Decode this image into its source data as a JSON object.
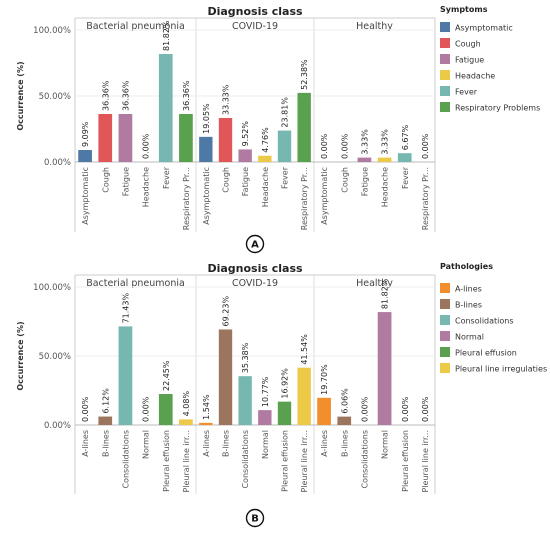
{
  "chart_data": [
    {
      "type": "bar",
      "title": "Diagnosis class",
      "ylabel": "Occurrence (%)",
      "ylim": [
        0,
        100
      ],
      "yticks": [
        "0.00%",
        "50.00%",
        "100.00%"
      ],
      "legend_title": "Symptoms",
      "legend_position": "right",
      "panel_label": "A",
      "categories": [
        "Asymptomatic",
        "Cough",
        "Fatigue",
        "Headache",
        "Fever",
        "Respiratory Problems"
      ],
      "tick_labels": [
        "Asymptomatic",
        "Cough",
        "Fatigue",
        "Headache",
        "Fever",
        "Respiratory Pr..."
      ],
      "colors": [
        "#4e79a7",
        "#e15759",
        "#b07aa1",
        "#edc948",
        "#76b7b2",
        "#59a14f"
      ],
      "groups": [
        {
          "name": "Bacterial pneumonia",
          "values": [
            9.09,
            36.36,
            36.36,
            0.0,
            81.82,
            36.36
          ],
          "labels": [
            "9.09%",
            "36.36%",
            "36.36%",
            "0.00%",
            "81.82%",
            "36.36%"
          ]
        },
        {
          "name": "COVID-19",
          "values": [
            19.05,
            33.33,
            9.52,
            4.76,
            23.81,
            52.38
          ],
          "labels": [
            "19.05%",
            "33.33%",
            "9.52%",
            "4.76%",
            "23.81%",
            "52.38%"
          ]
        },
        {
          "name": "Healthy",
          "values": [
            0.0,
            0.0,
            3.33,
            3.33,
            6.67,
            0.0
          ],
          "labels": [
            "0.00%",
            "0.00%",
            "3.33%",
            "3.33%",
            "6.67%",
            "0.00%"
          ]
        }
      ]
    },
    {
      "type": "bar",
      "title": "Diagnosis class",
      "ylabel": "Occurrence (%)",
      "ylim": [
        0,
        100
      ],
      "yticks": [
        "0.00%",
        "50.00%",
        "100.00%"
      ],
      "legend_title": "Pathologies",
      "legend_position": "right",
      "panel_label": "B",
      "categories": [
        "A-lines",
        "B-lines",
        "Consolidations",
        "Normal",
        "Pleural effusion",
        "Pleural line irregulaties"
      ],
      "tick_labels": [
        "A-lines",
        "B-lines",
        "Consolidations",
        "Normal",
        "Pleural effusion",
        "Pleural line irr..."
      ],
      "colors": [
        "#f28e2b",
        "#9c755f",
        "#76b7b2",
        "#b07aa1",
        "#59a14f",
        "#edc948"
      ],
      "groups": [
        {
          "name": "Bacterial pneumonia",
          "values": [
            0.0,
            6.12,
            71.43,
            0.0,
            22.45,
            4.08
          ],
          "labels": [
            "0.00%",
            "6.12%",
            "71.43%",
            "0.00%",
            "22.45%",
            "4.08%"
          ]
        },
        {
          "name": "COVID-19",
          "values": [
            1.54,
            69.23,
            35.38,
            10.77,
            16.92,
            41.54
          ],
          "labels": [
            "1.54%",
            "69.23%",
            "35.38%",
            "10.77%",
            "16.92%",
            "41.54%"
          ]
        },
        {
          "name": "Healthy",
          "values": [
            19.7,
            6.06,
            0.0,
            81.82,
            0.0,
            0.0
          ],
          "labels": [
            "19.70%",
            "6.06%",
            "0.00%",
            "81.82%",
            "0.00%",
            "0.00%"
          ]
        }
      ]
    }
  ]
}
